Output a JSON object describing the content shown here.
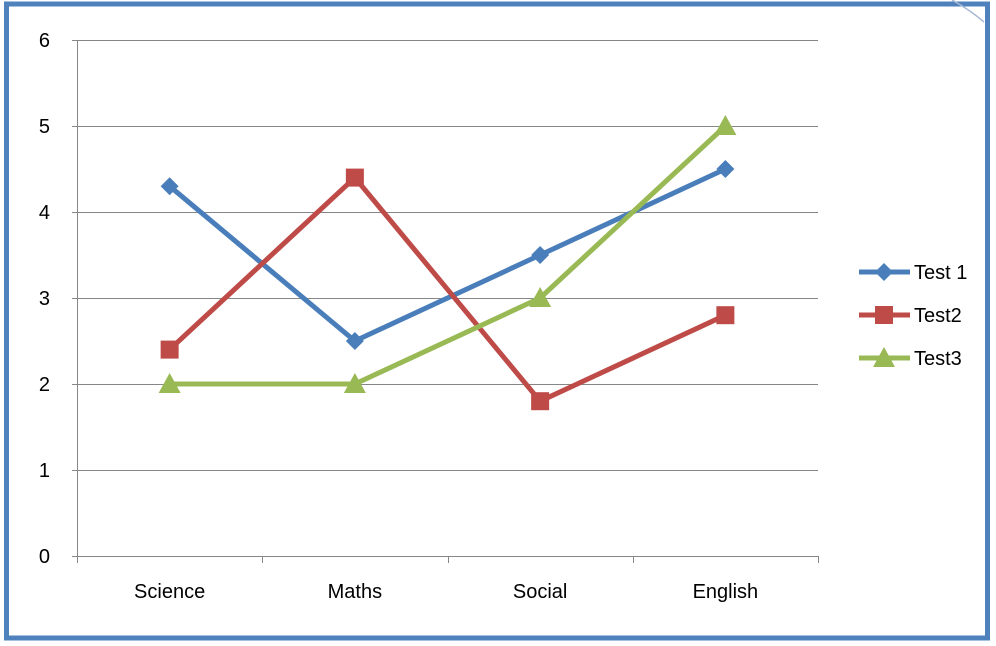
{
  "chart_data": {
    "type": "line",
    "categories": [
      "Science",
      "Maths",
      "Social",
      "English"
    ],
    "series": [
      {
        "name": "Test 1",
        "values": [
          4.3,
          2.5,
          3.5,
          4.5
        ],
        "color": "#4a7ebb",
        "marker": "diamond"
      },
      {
        "name": "Test2",
        "values": [
          2.4,
          4.4,
          1.8,
          2.8
        ],
        "color": "#be4b48",
        "marker": "square"
      },
      {
        "name": "Test3",
        "values": [
          2,
          2,
          3,
          5
        ],
        "color": "#98b954",
        "marker": "triangle"
      }
    ],
    "y_ticks": [
      "0",
      "1",
      "2",
      "3",
      "4",
      "5",
      "6"
    ],
    "ylim": [
      0,
      6
    ],
    "grid": true,
    "legend_position": "right",
    "border_color": "#4f81bd"
  }
}
